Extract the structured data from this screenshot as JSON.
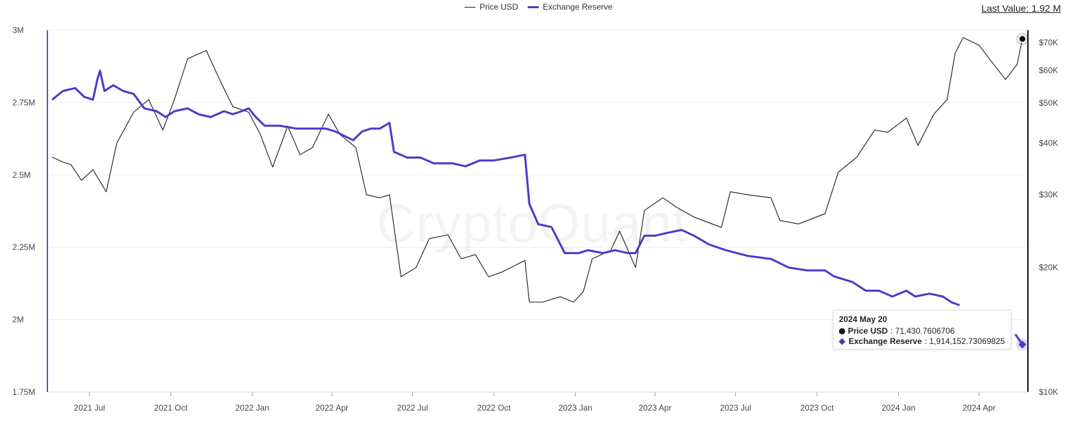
{
  "legend": {
    "price_label": "Price USD",
    "reserve_label": "Exchange Reserve"
  },
  "last_value": {
    "label": "Last Value: 1.92 M"
  },
  "watermark": "CryptoQuant",
  "tooltip": {
    "date": "2024 May 20",
    "price_name": "Price USD",
    "price_value": ": 71,430.7606706",
    "reserve_name": "Exchange Reserve",
    "reserve_value": ": 1,914,152.73069825"
  },
  "colors": {
    "price": "#1a1a1a",
    "reserve": "#4b3bc8",
    "axis": "#6b4fd8",
    "grid": "#eeeeee"
  },
  "chart_data": {
    "type": "line",
    "x_type": "date",
    "x_range": [
      "2021-05-20",
      "2024-05-20"
    ],
    "x_ticks": [
      "2021 Jul",
      "2021 Oct",
      "2022 Jan",
      "2022 Apr",
      "2022 Jul",
      "2022 Oct",
      "2023 Jan",
      "2023 Apr",
      "2023 Jul",
      "2023 Oct",
      "2024 Jan",
      "2024 Apr"
    ],
    "y_left": {
      "ticks": [
        1750000,
        2000000,
        2250000,
        2500000,
        2750000,
        3000000
      ],
      "tick_labels": [
        "1.75M",
        "2M",
        "2.25M",
        "2.5M",
        "2.75M",
        "3M"
      ],
      "range": [
        1750000,
        3000000
      ]
    },
    "y_right": {
      "scale": "log",
      "ticks": [
        10000,
        20000,
        30000,
        40000,
        50000,
        60000,
        70000
      ],
      "tick_labels": [
        "$10K",
        "$20K",
        "$30K",
        "$40K",
        "$50K",
        "$60K",
        "$70K"
      ],
      "range": [
        10000,
        75000
      ]
    },
    "series": [
      {
        "name": "Exchange Reserve",
        "axis": "left",
        "points": [
          [
            "2021-05-20",
            2760000
          ],
          [
            "2021-06-01",
            2790000
          ],
          [
            "2021-06-15",
            2800000
          ],
          [
            "2021-06-25",
            2770000
          ],
          [
            "2021-07-05",
            2760000
          ],
          [
            "2021-07-10",
            2830000
          ],
          [
            "2021-07-13",
            2860000
          ],
          [
            "2021-07-18",
            2790000
          ],
          [
            "2021-07-28",
            2810000
          ],
          [
            "2021-08-08",
            2790000
          ],
          [
            "2021-08-20",
            2780000
          ],
          [
            "2021-09-01",
            2730000
          ],
          [
            "2021-09-15",
            2720000
          ],
          [
            "2021-09-25",
            2700000
          ],
          [
            "2021-10-05",
            2720000
          ],
          [
            "2021-10-20",
            2730000
          ],
          [
            "2021-11-01",
            2710000
          ],
          [
            "2021-11-15",
            2700000
          ],
          [
            "2021-11-30",
            2720000
          ],
          [
            "2021-12-10",
            2710000
          ],
          [
            "2021-12-20",
            2720000
          ],
          [
            "2021-12-28",
            2730000
          ],
          [
            "2022-01-05",
            2700000
          ],
          [
            "2022-01-15",
            2670000
          ],
          [
            "2022-02-01",
            2670000
          ],
          [
            "2022-02-20",
            2660000
          ],
          [
            "2022-03-10",
            2660000
          ],
          [
            "2022-03-25",
            2660000
          ],
          [
            "2022-04-05",
            2650000
          ],
          [
            "2022-04-25",
            2620000
          ],
          [
            "2022-05-05",
            2650000
          ],
          [
            "2022-05-15",
            2660000
          ],
          [
            "2022-05-25",
            2660000
          ],
          [
            "2022-06-05",
            2680000
          ],
          [
            "2022-06-10",
            2580000
          ],
          [
            "2022-06-25",
            2560000
          ],
          [
            "2022-07-10",
            2560000
          ],
          [
            "2022-07-25",
            2540000
          ],
          [
            "2022-08-15",
            2540000
          ],
          [
            "2022-08-30",
            2530000
          ],
          [
            "2022-09-15",
            2550000
          ],
          [
            "2022-10-01",
            2550000
          ],
          [
            "2022-10-20",
            2560000
          ],
          [
            "2022-11-05",
            2570000
          ],
          [
            "2022-11-10",
            2400000
          ],
          [
            "2022-11-20",
            2330000
          ],
          [
            "2022-12-05",
            2320000
          ],
          [
            "2022-12-20",
            2230000
          ],
          [
            "2023-01-05",
            2230000
          ],
          [
            "2023-01-15",
            2240000
          ],
          [
            "2023-02-01",
            2230000
          ],
          [
            "2023-02-15",
            2240000
          ],
          [
            "2023-03-01",
            2230000
          ],
          [
            "2023-03-10",
            2230000
          ],
          [
            "2023-03-20",
            2290000
          ],
          [
            "2023-04-01",
            2290000
          ],
          [
            "2023-04-15",
            2300000
          ],
          [
            "2023-05-01",
            2310000
          ],
          [
            "2023-05-15",
            2290000
          ],
          [
            "2023-06-01",
            2260000
          ],
          [
            "2023-06-20",
            2240000
          ],
          [
            "2023-07-15",
            2220000
          ],
          [
            "2023-08-10",
            2210000
          ],
          [
            "2023-08-30",
            2180000
          ],
          [
            "2023-09-20",
            2170000
          ],
          [
            "2023-10-10",
            2170000
          ],
          [
            "2023-10-20",
            2150000
          ],
          [
            "2023-11-10",
            2130000
          ],
          [
            "2023-11-25",
            2100000
          ],
          [
            "2023-12-10",
            2100000
          ],
          [
            "2023-12-25",
            2080000
          ],
          [
            "2024-01-10",
            2100000
          ],
          [
            "2024-01-20",
            2080000
          ],
          [
            "2024-02-05",
            2090000
          ],
          [
            "2024-02-20",
            2080000
          ],
          [
            "2024-03-01",
            2060000
          ],
          [
            "2024-03-10",
            2050000
          ],
          [
            "2024-05-12",
            1950000
          ],
          [
            "2024-05-20",
            1914152.73
          ]
        ]
      },
      {
        "name": "Price USD",
        "axis": "right",
        "points": [
          [
            "2021-05-20",
            37000
          ],
          [
            "2021-06-01",
            36000
          ],
          [
            "2021-06-10",
            35500
          ],
          [
            "2021-06-22",
            32500
          ],
          [
            "2021-07-05",
            34500
          ],
          [
            "2021-07-20",
            30500
          ],
          [
            "2021-08-01",
            40000
          ],
          [
            "2021-08-20",
            47500
          ],
          [
            "2021-09-06",
            51000
          ],
          [
            "2021-09-22",
            43000
          ],
          [
            "2021-10-05",
            51000
          ],
          [
            "2021-10-20",
            64000
          ],
          [
            "2021-11-10",
            67000
          ],
          [
            "2021-11-25",
            57000
          ],
          [
            "2021-12-10",
            49000
          ],
          [
            "2021-12-28",
            47500
          ],
          [
            "2022-01-10",
            42000
          ],
          [
            "2022-01-24",
            35000
          ],
          [
            "2022-02-10",
            44000
          ],
          [
            "2022-02-24",
            37500
          ],
          [
            "2022-03-10",
            39000
          ],
          [
            "2022-03-28",
            47000
          ],
          [
            "2022-04-10",
            42000
          ],
          [
            "2022-04-28",
            39000
          ],
          [
            "2022-05-10",
            30000
          ],
          [
            "2022-05-25",
            29500
          ],
          [
            "2022-06-05",
            30000
          ],
          [
            "2022-06-18",
            19000
          ],
          [
            "2022-07-05",
            20000
          ],
          [
            "2022-07-20",
            23500
          ],
          [
            "2022-08-10",
            24000
          ],
          [
            "2022-08-25",
            21000
          ],
          [
            "2022-09-10",
            21500
          ],
          [
            "2022-09-25",
            19000
          ],
          [
            "2022-10-10",
            19500
          ],
          [
            "2022-11-05",
            20800
          ],
          [
            "2022-11-10",
            16500
          ],
          [
            "2022-11-25",
            16500
          ],
          [
            "2022-12-15",
            17000
          ],
          [
            "2022-12-30",
            16500
          ],
          [
            "2023-01-10",
            17500
          ],
          [
            "2023-01-20",
            21000
          ],
          [
            "2023-02-10",
            22000
          ],
          [
            "2023-02-20",
            24500
          ],
          [
            "2023-03-10",
            20000
          ],
          [
            "2023-03-20",
            27500
          ],
          [
            "2023-04-10",
            29500
          ],
          [
            "2023-04-25",
            28000
          ],
          [
            "2023-05-15",
            26500
          ],
          [
            "2023-06-15",
            25000
          ],
          [
            "2023-06-25",
            30500
          ],
          [
            "2023-07-15",
            30000
          ],
          [
            "2023-08-10",
            29500
          ],
          [
            "2023-08-20",
            26000
          ],
          [
            "2023-09-10",
            25500
          ],
          [
            "2023-10-10",
            27000
          ],
          [
            "2023-10-25",
            34000
          ],
          [
            "2023-11-15",
            37000
          ],
          [
            "2023-12-05",
            43000
          ],
          [
            "2023-12-20",
            42500
          ],
          [
            "2024-01-10",
            46000
          ],
          [
            "2024-01-23",
            39500
          ],
          [
            "2024-02-10",
            47000
          ],
          [
            "2024-02-25",
            51000
          ],
          [
            "2024-03-05",
            66000
          ],
          [
            "2024-03-14",
            72000
          ],
          [
            "2024-04-01",
            69000
          ],
          [
            "2024-04-15",
            63000
          ],
          [
            "2024-05-01",
            57000
          ],
          [
            "2024-05-14",
            62000
          ],
          [
            "2024-05-20",
            71430.76
          ]
        ]
      }
    ]
  }
}
